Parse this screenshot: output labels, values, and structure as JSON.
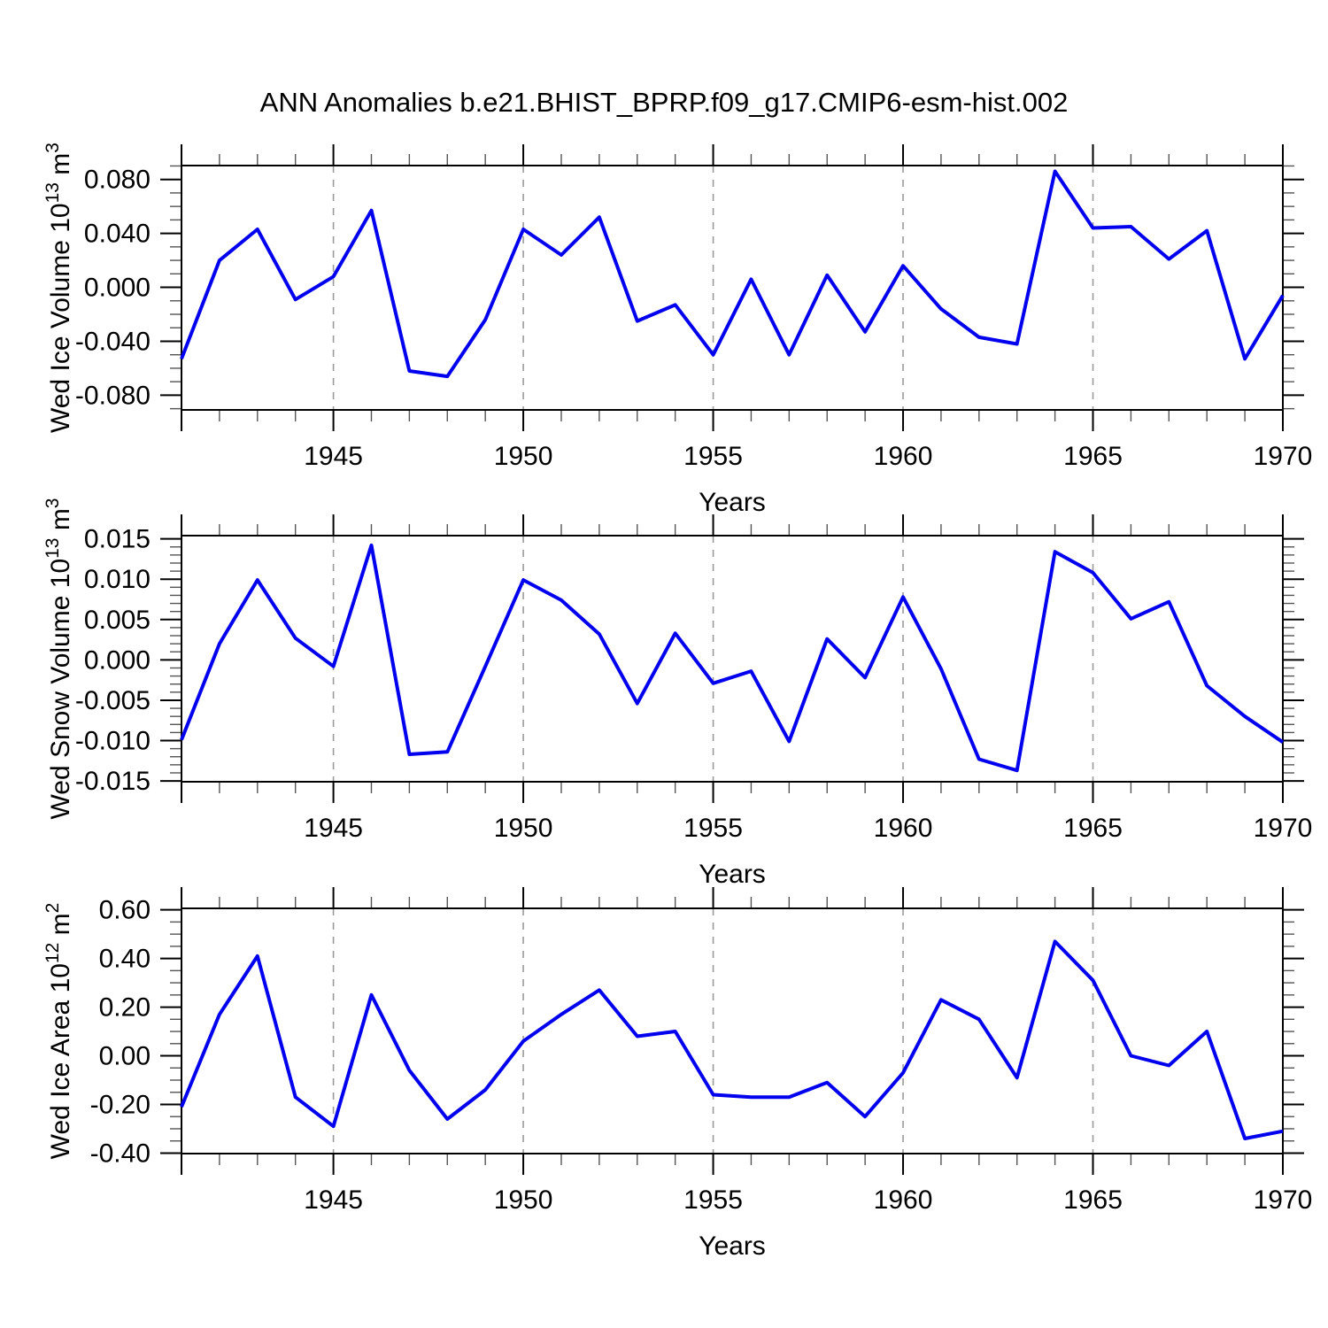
{
  "title": "ANN Anomalies b.e21.BHIST_BPRP.f09_g17.CMIP6-esm-hist.002",
  "colors": {
    "line": "#0000EE",
    "axis": "#000000",
    "grid": "#9a9a9a",
    "minor_tick": "#555555",
    "text": "#000000",
    "background": "#ffffff"
  },
  "chart_data": [
    {
      "type": "line",
      "ylabel": "Wed Ice Volume 10¹³ m³",
      "ylabel_parts": [
        {
          "text": "Wed Ice Volume 10",
          "sup": false
        },
        {
          "text": "13",
          "sup": true
        },
        {
          "text": " m",
          "sup": false
        },
        {
          "text": "3",
          "sup": true
        }
      ],
      "xlabel": "Years",
      "x": [
        1941,
        1942,
        1943,
        1944,
        1945,
        1946,
        1947,
        1948,
        1949,
        1950,
        1951,
        1952,
        1953,
        1954,
        1955,
        1956,
        1957,
        1958,
        1959,
        1960,
        1961,
        1962,
        1963,
        1964,
        1965,
        1966,
        1967,
        1968,
        1969,
        1970
      ],
      "values": [
        -0.053,
        0.02,
        0.043,
        -0.009,
        0.008,
        0.057,
        -0.062,
        -0.066,
        -0.024,
        0.043,
        0.024,
        0.052,
        -0.025,
        -0.013,
        -0.05,
        0.006,
        -0.05,
        0.009,
        -0.033,
        0.016,
        -0.016,
        -0.037,
        -0.042,
        0.086,
        0.044,
        0.045,
        0.021,
        0.042,
        -0.053,
        -0.006
      ],
      "xlim": [
        1941,
        1970
      ],
      "ylim": [
        -0.0909,
        0.0903
      ],
      "xticks": [
        1945,
        1950,
        1955,
        1960,
        1965,
        1970
      ],
      "xtick_labels": [
        "1945",
        "1950",
        "1955",
        "1960",
        "1965",
        "1970"
      ],
      "yticks": [
        -0.08,
        -0.04,
        0.0,
        0.04,
        0.08
      ],
      "ytick_labels": [
        "-0.080",
        "-0.040",
        "0.000",
        "0.040",
        "0.080"
      ],
      "yminor_step": 0.01,
      "grid_x": [
        1945,
        1950,
        1955,
        1960,
        1965
      ],
      "grid_on": true,
      "legend": "none"
    },
    {
      "type": "line",
      "ylabel": "Wed Snow Volume 10¹³ m³",
      "ylabel_parts": [
        {
          "text": "Wed Snow Volume 10",
          "sup": false
        },
        {
          "text": "13",
          "sup": true
        },
        {
          "text": " m",
          "sup": false
        },
        {
          "text": "3",
          "sup": true
        }
      ],
      "xlabel": "Years",
      "x": [
        1941,
        1942,
        1943,
        1944,
        1945,
        1946,
        1947,
        1948,
        1949,
        1950,
        1951,
        1952,
        1953,
        1954,
        1955,
        1956,
        1957,
        1958,
        1959,
        1960,
        1961,
        1962,
        1963,
        1964,
        1965,
        1966,
        1967,
        1968,
        1969,
        1970
      ],
      "values": [
        -0.0099,
        0.002,
        0.0099,
        0.0027,
        -0.0008,
        0.0142,
        -0.0117,
        -0.0114,
        -0.0008,
        0.0099,
        0.0074,
        0.0032,
        -0.0054,
        0.0033,
        -0.0029,
        -0.0014,
        -0.0101,
        0.0026,
        -0.0022,
        0.0078,
        -0.0011,
        -0.0123,
        -0.0137,
        0.0134,
        0.0108,
        0.0051,
        0.0072,
        -0.0032,
        -0.007,
        -0.0102
      ],
      "xlim": [
        1941,
        1970
      ],
      "ylim": [
        -0.0151,
        0.0154
      ],
      "xticks": [
        1945,
        1950,
        1955,
        1960,
        1965,
        1970
      ],
      "xtick_labels": [
        "1945",
        "1950",
        "1955",
        "1960",
        "1965",
        "1970"
      ],
      "yticks": [
        -0.015,
        -0.01,
        -0.005,
        0.0,
        0.005,
        0.01,
        0.015
      ],
      "ytick_labels": [
        "-0.015",
        "-0.010",
        "-0.005",
        "0.000",
        "0.005",
        "0.010",
        "0.015"
      ],
      "yminor_step": 0.001,
      "grid_x": [
        1945,
        1950,
        1955,
        1960,
        1965
      ],
      "grid_on": true,
      "legend": "none"
    },
    {
      "type": "line",
      "ylabel": "Wed Ice Area 10¹² m²",
      "ylabel_parts": [
        {
          "text": "Wed Ice Area 10",
          "sup": false
        },
        {
          "text": "12",
          "sup": true
        },
        {
          "text": " m",
          "sup": false
        },
        {
          "text": "2",
          "sup": true
        }
      ],
      "xlabel": "Years",
      "x": [
        1941,
        1942,
        1943,
        1944,
        1945,
        1946,
        1947,
        1948,
        1949,
        1950,
        1951,
        1952,
        1953,
        1954,
        1955,
        1956,
        1957,
        1958,
        1959,
        1960,
        1961,
        1962,
        1963,
        1964,
        1965,
        1966,
        1967,
        1968,
        1969,
        1970
      ],
      "values": [
        -0.21,
        0.17,
        0.41,
        -0.17,
        -0.29,
        0.25,
        -0.06,
        -0.26,
        -0.14,
        0.06,
        0.17,
        0.27,
        0.08,
        0.1,
        -0.16,
        -0.17,
        -0.17,
        -0.11,
        -0.25,
        -0.07,
        0.23,
        0.15,
        -0.09,
        0.47,
        0.31,
        0.0,
        -0.04,
        0.1,
        -0.34,
        -0.31
      ],
      "xlim": [
        1941,
        1970
      ],
      "ylim": [
        -0.402,
        0.606
      ],
      "xticks": [
        1945,
        1950,
        1955,
        1960,
        1965,
        1970
      ],
      "xtick_labels": [
        "1945",
        "1950",
        "1955",
        "1960",
        "1965",
        "1970"
      ],
      "yticks": [
        -0.4,
        -0.2,
        0.0,
        0.2,
        0.4,
        0.6
      ],
      "ytick_labels": [
        "-0.40",
        "-0.20",
        "0.00",
        "0.20",
        "0.40",
        "0.60"
      ],
      "yminor_step": 0.05,
      "grid_x": [
        1945,
        1950,
        1955,
        1960,
        1965
      ],
      "grid_on": true,
      "legend": "none"
    }
  ]
}
